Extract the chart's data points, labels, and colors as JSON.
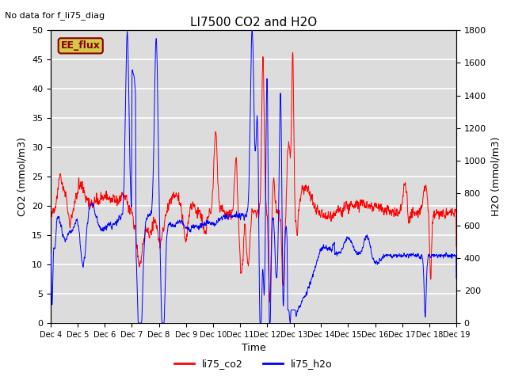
{
  "title": "LI7500 CO2 and H2O",
  "top_left_text": "No data for f_li75_diag",
  "xlabel": "Time",
  "ylabel_left": "CO2 (mmol/m3)",
  "ylabel_right": "H2O (mmol/m3)",
  "ylim_left": [
    0,
    50
  ],
  "ylim_right": [
    0,
    1800
  ],
  "bg_color": "#dcdcdc",
  "grid_color": "white",
  "co2_color": "red",
  "h2o_color": "blue",
  "legend_label_co2": "li75_co2",
  "legend_label_h2o": "li75_h2o",
  "ee_flux_label": "EE_flux",
  "ee_flux_bg": "#d4c84a",
  "ee_flux_border": "#8b0000",
  "tick_labels": [
    "Dec 4",
    "Dec 5",
    "Dec 6",
    "Dec 7",
    "Dec 8",
    "Dec 9",
    "Dec 10",
    "Dec 11",
    "Dec 12",
    "Dec 13",
    "Dec 14",
    "Dec 15",
    "Dec 16",
    "Dec 17",
    "Dec 18",
    "Dec 19"
  ],
  "n_points": 2000
}
